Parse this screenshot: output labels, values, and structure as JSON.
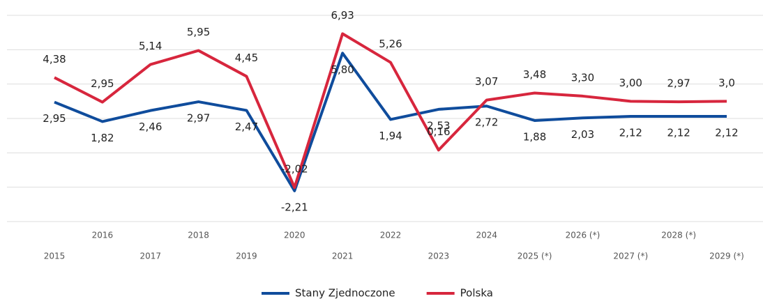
{
  "chart_data": {
    "type": "line",
    "categories": [
      "2015",
      "2016",
      "2017",
      "2018",
      "2019",
      "2020",
      "2021",
      "2022",
      "2023",
      "2024",
      "2025 (*)",
      "2026 (*)",
      "2027 (*)",
      "2028 (*)",
      "2029 (*)"
    ],
    "series": [
      {
        "name": "Stany Zjednoczone",
        "color": "#0f4c9c",
        "values": [
          2.95,
          1.82,
          2.46,
          2.97,
          2.47,
          -2.21,
          5.8,
          1.94,
          2.53,
          2.72,
          1.88,
          2.03,
          2.12,
          2.12,
          2.12
        ],
        "value_labels": [
          "2,95",
          "1,82",
          "2,46",
          "2,97",
          "2,47",
          "-2,21",
          "5,80",
          "1,94",
          "2,53",
          "2,72",
          "1,88",
          "2,03",
          "2,12",
          "2,12",
          "2,12"
        ]
      },
      {
        "name": "Polska",
        "color": "#d7263d",
        "values": [
          4.38,
          2.95,
          5.14,
          5.95,
          4.45,
          -2.02,
          6.93,
          5.26,
          0.16,
          3.07,
          3.48,
          3.3,
          3.0,
          2.97,
          3.0
        ],
        "value_labels": [
          "4,38",
          "2,95",
          "5,14",
          "5,95",
          "4,45",
          "-2,02",
          "6,93",
          "5,26",
          "0,16",
          "3,07",
          "3,48",
          "3,30",
          "3,00",
          "2,97",
          "3,0"
        ]
      }
    ],
    "ylim": [
      -4,
      8
    ],
    "yticks": [
      -4,
      -2,
      0,
      2,
      4,
      6,
      8
    ],
    "grid": true
  }
}
